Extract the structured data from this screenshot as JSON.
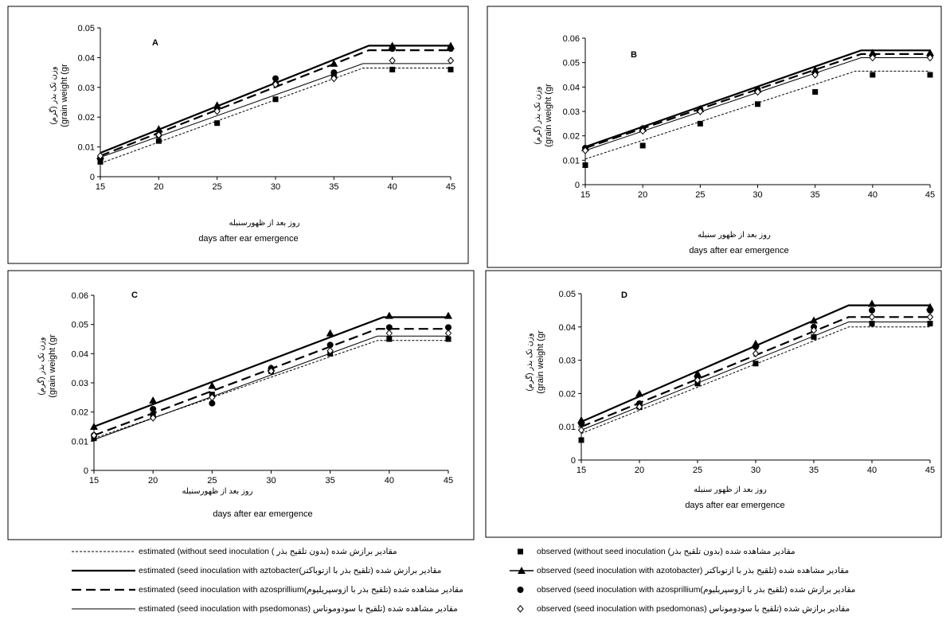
{
  "chart_data": [
    {
      "type": "line",
      "panel_label": "A",
      "ylabel_fa": "وزن تک بذر (گرم)",
      "ylabel_en": "(grain weight (gr",
      "xlabel_fa": "روز بعد از ظهورسنبله",
      "xlabel_en": "days after  ear emergence",
      "x_ticks": [
        "15",
        "20",
        "25",
        "30",
        "35",
        "40",
        "45"
      ],
      "y_ticks": [
        "0",
        "0.01",
        "0.02",
        "0.03",
        "0.04",
        "0.05"
      ],
      "xlim": [
        15,
        45
      ],
      "ylim": [
        0,
        0.05
      ],
      "x": [
        15,
        20,
        25,
        30,
        35,
        40,
        45
      ],
      "series": [
        {
          "key": "without",
          "line": [
            [
              15,
              0.0045
            ],
            [
              37.5,
              0.0365
            ],
            [
              45,
              0.0365
            ]
          ],
          "points": [
            0.005,
            0.012,
            0.018,
            0.026,
            0.034,
            0.036,
            0.036
          ]
        },
        {
          "key": "azotobacter",
          "line": [
            [
              15,
              0.008
            ],
            [
              38,
              0.044
            ],
            [
              45,
              0.044
            ]
          ],
          "points": [
            0.007,
            0.016,
            0.024,
            0.032,
            0.038,
            0.044,
            0.044
          ]
        },
        {
          "key": "azospirillum",
          "line": [
            [
              15,
              0.007
            ],
            [
              38,
              0.0425
            ],
            [
              45,
              0.0425
            ]
          ],
          "points": [
            0.006,
            0.014,
            0.023,
            0.033,
            0.035,
            0.043,
            0.043
          ]
        },
        {
          "key": "pseudomonas",
          "line": [
            [
              15,
              0.0065
            ],
            [
              37.5,
              0.038
            ],
            [
              45,
              0.038
            ]
          ],
          "points": [
            0.007,
            0.014,
            0.022,
            0.031,
            0.033,
            0.039,
            0.039
          ]
        }
      ]
    },
    {
      "type": "line",
      "panel_label": "B",
      "ylabel_fa": "وزن تک بذر (گرم)",
      "ylabel_en": "(grain weight (gr",
      "xlabel_fa": "روز بعد از ظهور سنبله",
      "xlabel_en": "days after  ear emergence",
      "x_ticks": [
        "15",
        "20",
        "25",
        "30",
        "35",
        "40",
        "45"
      ],
      "y_ticks": [
        "0",
        "0.01",
        "0.02",
        "0.03",
        "0.04",
        "0.05",
        "0.06"
      ],
      "xlim": [
        15,
        45
      ],
      "ylim": [
        0,
        0.06
      ],
      "x": [
        15,
        20,
        25,
        30,
        35,
        40,
        45
      ],
      "series": [
        {
          "key": "without",
          "line": [
            [
              15,
              0.0105
            ],
            [
              38.5,
              0.0465
            ],
            [
              45,
              0.0465
            ]
          ],
          "points": [
            0.008,
            0.016,
            0.025,
            0.033,
            0.038,
            0.045,
            0.045
          ]
        },
        {
          "key": "azotobacter",
          "line": [
            [
              15,
              0.0155
            ],
            [
              39,
              0.055
            ],
            [
              45,
              0.055
            ]
          ],
          "points": [
            0.015,
            0.023,
            0.031,
            0.039,
            0.047,
            0.054,
            0.054
          ]
        },
        {
          "key": "azospirillum",
          "line": [
            [
              15,
              0.015
            ],
            [
              39,
              0.0535
            ],
            [
              45,
              0.0535
            ]
          ],
          "points": [
            0.015,
            0.023,
            0.031,
            0.039,
            0.046,
            0.053,
            0.053
          ]
        },
        {
          "key": "pseudomonas",
          "line": [
            [
              15,
              0.014
            ],
            [
              39,
              0.052
            ],
            [
              45,
              0.052
            ]
          ],
          "points": [
            0.014,
            0.022,
            0.03,
            0.038,
            0.045,
            0.052,
            0.052
          ]
        }
      ]
    },
    {
      "type": "line",
      "panel_label": "C",
      "ylabel_fa": "وزن تک بذر (گرم)",
      "ylabel_en": "(grain weight (gr",
      "xlabel_fa": "روز بعد از ظهورسنبله",
      "xlabel_en": "days after  ear emergence",
      "x_ticks": [
        "15",
        "20",
        "25",
        "30",
        "35",
        "40",
        "45"
      ],
      "y_ticks": [
        "0",
        "0.01",
        "0.02",
        "0.03",
        "0.04",
        "0.05",
        "0.06"
      ],
      "xlim": [
        15,
        45
      ],
      "ylim": [
        0,
        0.06
      ],
      "x": [
        15,
        20,
        25,
        30,
        35,
        40,
        45
      ],
      "series": [
        {
          "key": "without",
          "line": [
            [
              15,
              0.011
            ],
            [
              39,
              0.0445
            ],
            [
              45,
              0.0445
            ]
          ],
          "points": [
            0.011,
            0.019,
            0.026,
            0.034,
            0.04,
            0.045,
            0.045
          ]
        },
        {
          "key": "azotobacter",
          "line": [
            [
              15,
              0.015
            ],
            [
              39.5,
              0.0525
            ],
            [
              45,
              0.0525
            ]
          ],
          "points": [
            0.015,
            0.024,
            0.029,
            0.035,
            0.047,
            0.053,
            0.053
          ]
        },
        {
          "key": "azospirillum",
          "line": [
            [
              15,
              0.012
            ],
            [
              39,
              0.0485
            ],
            [
              45,
              0.0485
            ]
          ],
          "points": [
            0.012,
            0.021,
            0.023,
            0.035,
            0.043,
            0.049,
            0.049
          ]
        },
        {
          "key": "pseudomonas",
          "line": [
            [
              15,
              0.0105
            ],
            [
              39,
              0.046
            ],
            [
              45,
              0.046
            ]
          ],
          "points": [
            0.012,
            0.018,
            0.025,
            0.034,
            0.041,
            0.047,
            0.047
          ]
        }
      ]
    },
    {
      "type": "line",
      "panel_label": "D",
      "ylabel_fa": "وزن تک بذر (گرم)",
      "ylabel_en": "(grain weight (gr",
      "xlabel_fa": "روز بعد از ظهور سنبله",
      "xlabel_en": "days after  ear emergence",
      "x_ticks": [
        "15",
        "20",
        "25",
        "30",
        "35",
        "40",
        "45"
      ],
      "y_ticks": [
        "0",
        "0.01",
        "0.02",
        "0.03",
        "0.04",
        "0.05"
      ],
      "xlim": [
        15,
        45
      ],
      "ylim": [
        0,
        0.05
      ],
      "x": [
        15,
        20,
        25,
        30,
        35,
        40,
        45
      ],
      "series": [
        {
          "key": "without",
          "line": [
            [
              15,
              0.008
            ],
            [
              38,
              0.04
            ],
            [
              45,
              0.04
            ]
          ],
          "points": [
            0.006,
            0.016,
            0.023,
            0.029,
            0.037,
            0.041,
            0.041
          ]
        },
        {
          "key": "azotobacter",
          "line": [
            [
              15,
              0.0115
            ],
            [
              38,
              0.0465
            ],
            [
              45,
              0.0465
            ]
          ],
          "points": [
            0.012,
            0.02,
            0.026,
            0.035,
            0.042,
            0.047,
            0.046
          ]
        },
        {
          "key": "azospirillum",
          "line": [
            [
              15,
              0.01
            ],
            [
              38,
              0.043
            ],
            [
              45,
              0.043
            ]
          ],
          "points": [
            0.011,
            0.017,
            0.025,
            0.034,
            0.04,
            0.045,
            0.045
          ]
        },
        {
          "key": "pseudomonas",
          "line": [
            [
              15,
              0.009
            ],
            [
              38,
              0.0415
            ],
            [
              45,
              0.0415
            ]
          ],
          "points": [
            0.009,
            0.016,
            0.024,
            0.032,
            0.039,
            0.043,
            0.043
          ]
        }
      ]
    }
  ],
  "legend": {
    "left": [
      "estimated (without seed inoculation (  مقادیر برازش شده (بدون تلقیح بذر",
      "estimated (seed inoculation with aztobacter(مقادیر برازش شده (تلقیح بذر با ازتوباکتر",
      "estimated (seed inoculation with azosprillium(مقادیر مشاهده شده (تلقیح بذر با ازوسپریلیوم",
      "estimated (seed inoculation with psedomonas) مقادیر مشاهده شده (تلقیح با سودوموناس"
    ],
    "right": [
      "observed (without seed inoculation (مقادیر مشاهده شده (بدون تلقیح بذر",
      "observed (seed inoculation with azotobacter) مقادیر مشاهده شده (تلقیح بذر با ازتوباکتر",
      "observed (seed inoculation with azosprillium(مقادیر برازش شده (تلقیح بذر با ازوسپریلیوم",
      "observed (seed inoculation with psedomonas) مقادیر برازش شده (تلقیح با سودوموناس"
    ]
  }
}
